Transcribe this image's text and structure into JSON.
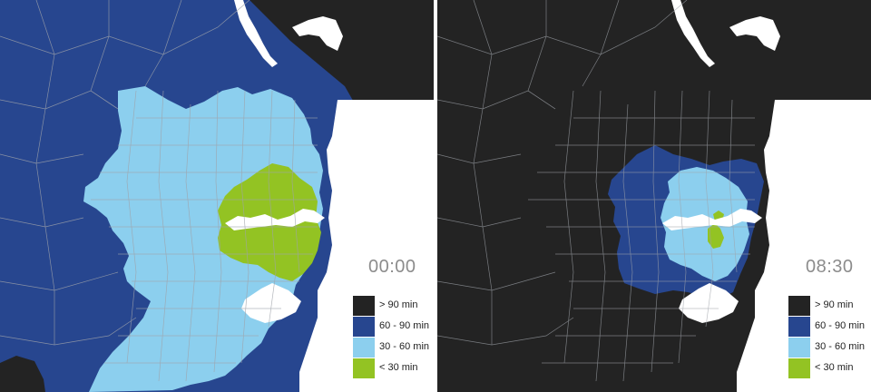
{
  "colors": {
    "gt_90": "#232323",
    "60_90": "#27468f",
    "30_60": "#8ccfee",
    "lt_30": "#93c323",
    "water": "#ffffff",
    "boundary": "#a2a2a2"
  },
  "legend": {
    "items": [
      {
        "label": "> 90 min",
        "color": "#232323"
      },
      {
        "label": "60 - 90 min",
        "color": "#27468f"
      },
      {
        "label": "30 - 60 min",
        "color": "#8ccfee"
      },
      {
        "label": "< 30 min",
        "color": "#93c323"
      }
    ]
  },
  "maps": [
    {
      "time": "00:00"
    },
    {
      "time": "08:30"
    }
  ]
}
